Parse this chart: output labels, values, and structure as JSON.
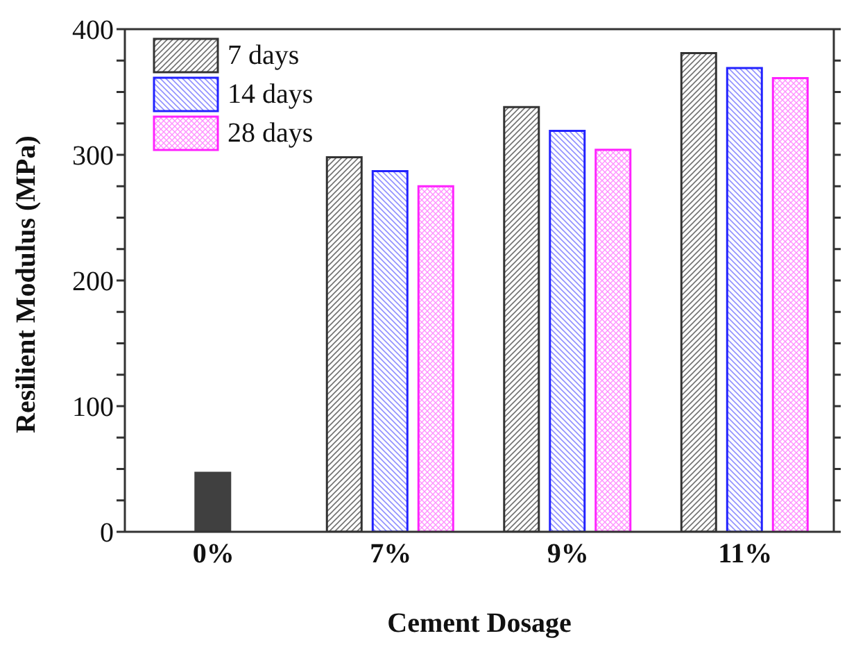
{
  "chart_data": {
    "type": "bar",
    "xlabel": "Cement Dosage",
    "ylabel": "Resilient Modulus (MPa)",
    "categories": [
      "0%",
      "7%",
      "9%",
      "11%"
    ],
    "series": [
      {
        "color": "#404040",
        "values": [
          47,
          null,
          null,
          null
        ]
      },
      {
        "name": "7 days",
        "color": "#333333",
        "values": [
          null,
          298,
          338,
          381
        ]
      },
      {
        "name": "14 days",
        "color": "#2222ff",
        "values": [
          null,
          287,
          319,
          369
        ]
      },
      {
        "name": "28 days",
        "color": "#ff22ff",
        "values": [
          null,
          275,
          304,
          361
        ]
      }
    ],
    "ylim": [
      0,
      400
    ],
    "yticks": [
      0,
      {
        "value": 25,
        "label": null
      },
      {
        "value": 50,
        "label": null
      },
      {
        "value": 75,
        "label": null
      },
      100,
      {
        "value": 125,
        "label": null
      },
      {
        "value": 150,
        "label": null
      },
      {
        "value": 175,
        "label": null
      },
      200,
      {
        "value": 225,
        "label": null
      },
      {
        "value": 250,
        "label": null
      },
      {
        "value": 275,
        "label": null
      },
      300,
      {
        "value": 325,
        "label": null
      },
      {
        "value": 350,
        "label": null
      },
      {
        "value": 375,
        "label": null
      },
      400
    ],
    "legend": "top left"
  }
}
